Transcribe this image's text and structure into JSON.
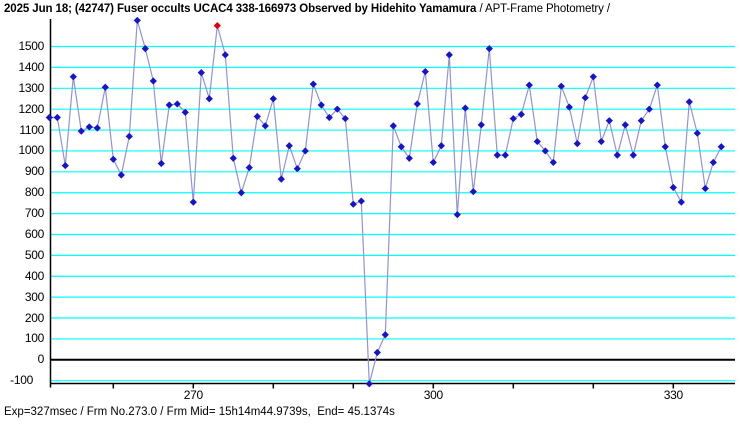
{
  "title": {
    "main": "2025 Jun 18; (42747) Fuser occults UCAC4 338-166973 Observed by Hidehito Yamamura",
    "suffix": " / APT-Frame Photometry /"
  },
  "footer": {
    "text": "Exp=327msec / Frm No.273.0 / Frm Mid= 15h14m44.9739s,  End= 45.1374s"
  },
  "chart_data": {
    "type": "line",
    "title": "2025 Jun 18; (42747) Fuser occults UCAC4 338-166973 Observed by Hidehito Yamamura / APT-Frame Photometry /",
    "xlabel": "",
    "ylabel": "",
    "x": [
      252,
      253,
      254,
      255,
      256,
      257,
      258,
      259,
      260,
      261,
      262,
      263,
      264,
      265,
      266,
      267,
      268,
      269,
      270,
      271,
      272,
      273,
      274,
      275,
      276,
      277,
      278,
      279,
      280,
      281,
      282,
      283,
      284,
      285,
      286,
      287,
      288,
      289,
      290,
      291,
      292,
      293,
      294,
      295,
      296,
      297,
      298,
      299,
      300,
      301,
      302,
      303,
      304,
      305,
      306,
      307,
      308,
      309,
      310,
      311,
      312,
      313,
      314,
      315,
      316,
      317,
      318,
      319,
      320,
      321,
      322,
      323,
      324,
      325,
      326,
      327,
      328,
      329,
      330,
      331,
      332,
      333,
      334,
      335,
      336
    ],
    "y": [
      1160,
      1160,
      930,
      1355,
      1095,
      1115,
      1110,
      1305,
      960,
      885,
      1070,
      1625,
      1490,
      1335,
      940,
      1220,
      1225,
      1185,
      755,
      1375,
      1250,
      1600,
      1460,
      965,
      800,
      920,
      1165,
      1120,
      1250,
      865,
      1025,
      915,
      1000,
      1320,
      1220,
      1160,
      1200,
      1155,
      745,
      760,
      -115,
      35,
      120,
      1120,
      1020,
      965,
      1225,
      1380,
      945,
      1025,
      1460,
      695,
      1205,
      805,
      1125,
      1490,
      980,
      980,
      1155,
      1175,
      1315,
      1045,
      1000,
      945,
      1310,
      1210,
      1035,
      1255,
      1355,
      1045,
      1145,
      980,
      1125,
      980,
      1145,
      1200,
      1315,
      1020,
      825,
      755,
      1235,
      1085,
      820,
      945,
      1020
    ],
    "marked_x": 273,
    "x_ticks": [
      260,
      270,
      280,
      290,
      300,
      310,
      320,
      330
    ],
    "x_tick_labels": [
      {
        "value": 270,
        "label": "270"
      },
      {
        "value": 300,
        "label": "300"
      },
      {
        "value": 330,
        "label": "330"
      }
    ],
    "y_ticks": [
      -100,
      0,
      100,
      200,
      300,
      400,
      500,
      600,
      700,
      800,
      900,
      1000,
      1100,
      1200,
      1300,
      1400,
      1500
    ],
    "y_tick_labels": [
      "-100",
      "0",
      "100",
      "200",
      "300",
      "400",
      "500",
      "600",
      "700",
      "800",
      "900",
      "1000",
      "1100",
      "1200",
      "1300",
      "1400",
      "1500"
    ],
    "xlim": [
      252,
      337.7
    ],
    "ylim": [
      -130,
      1630
    ],
    "grid": true,
    "zero_line": true,
    "legend": false,
    "colors": {
      "grid": "#00ffff",
      "zero_line": "#000000",
      "axis": "#000000",
      "line": "#8f93d8",
      "marker": "#1414cc",
      "marked_marker": "#e00000",
      "background": "#ffffff",
      "text": "#000000"
    }
  }
}
